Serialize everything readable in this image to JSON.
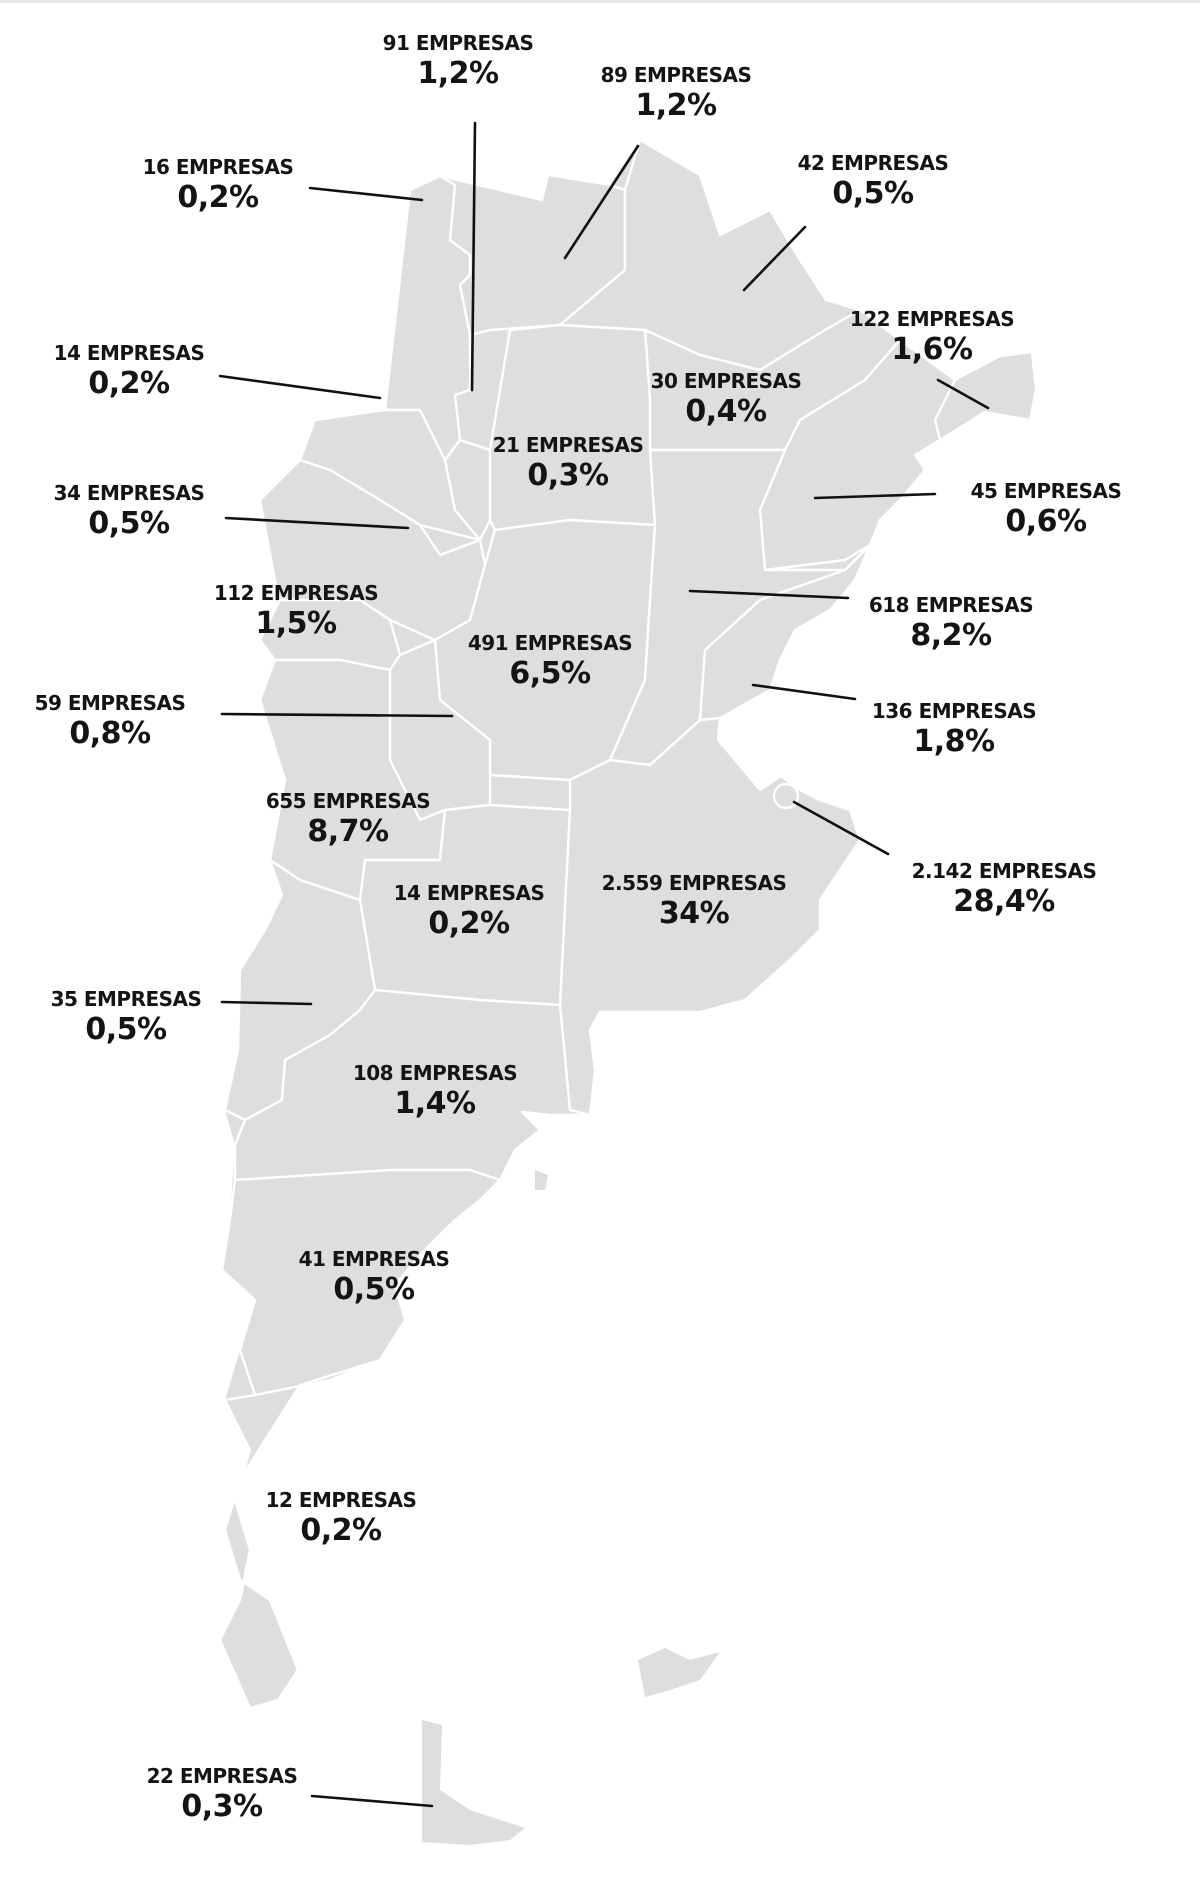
{
  "map_title": "",
  "unit_label": "EMPRESAS",
  "colors": {
    "land": "#dedede",
    "borders": "#ffffff",
    "text": "#141414",
    "leader_lines": "#111111"
  },
  "labels": [
    {
      "id": "jujuy",
      "count": "91 EMPRESAS",
      "pct": "1,2%"
    },
    {
      "id": "salta",
      "count": "89 EMPRESAS",
      "pct": "1,2%"
    },
    {
      "id": "north-tip",
      "count": "16 EMPRESAS",
      "pct": "0,2%"
    },
    {
      "id": "formosa",
      "count": "42 EMPRESAS",
      "pct": "0,5%"
    },
    {
      "id": "misiones",
      "count": "122 EMPRESAS",
      "pct": "1,6%"
    },
    {
      "id": "catamarca",
      "count": "14 EMPRESAS",
      "pct": "0,2%"
    },
    {
      "id": "chaco",
      "count": "30 EMPRESAS",
      "pct": "0,4%"
    },
    {
      "id": "santiago",
      "count": "21 EMPRESAS",
      "pct": "0,3%"
    },
    {
      "id": "la-rioja",
      "count": "34 EMPRESAS",
      "pct": "0,5%"
    },
    {
      "id": "corrientes",
      "count": "45 EMPRESAS",
      "pct": "0,6%"
    },
    {
      "id": "san-juan",
      "count": "112 EMPRESAS",
      "pct": "1,5%"
    },
    {
      "id": "santa-fe",
      "count": "618 EMPRESAS",
      "pct": "8,2%"
    },
    {
      "id": "cordoba",
      "count": "491 EMPRESAS",
      "pct": "6,5%"
    },
    {
      "id": "san-luis",
      "count": "59 EMPRESAS",
      "pct": "0,8%"
    },
    {
      "id": "entre-rios",
      "count": "136 EMPRESAS",
      "pct": "1,8%"
    },
    {
      "id": "mendoza",
      "count": "655 EMPRESAS",
      "pct": "8,7%"
    },
    {
      "id": "caba",
      "count": "2.142 EMPRESAS",
      "pct": "28,4%"
    },
    {
      "id": "la-pampa",
      "count": "14 EMPRESAS",
      "pct": "0,2%"
    },
    {
      "id": "buenos-aires",
      "count": "2.559 EMPRESAS",
      "pct": "34%"
    },
    {
      "id": "neuquen",
      "count": "35 EMPRESAS",
      "pct": "0,5%"
    },
    {
      "id": "rio-negro",
      "count": "108 EMPRESAS",
      "pct": "1,4%"
    },
    {
      "id": "chubut",
      "count": "41 EMPRESAS",
      "pct": "0,5%"
    },
    {
      "id": "santa-cruz",
      "count": "12 EMPRESAS",
      "pct": "0,2%"
    },
    {
      "id": "tierra-del-fuego",
      "count": "22 EMPRESAS",
      "pct": "0,3%"
    }
  ]
}
